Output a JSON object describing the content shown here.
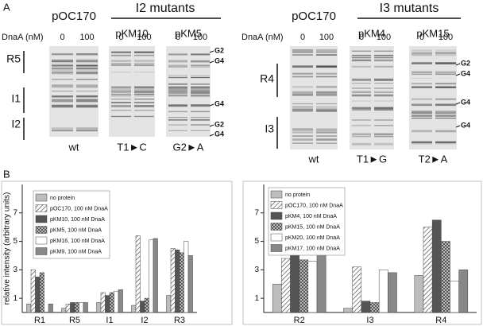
{
  "panel_a": {
    "label": "A",
    "groups": [
      {
        "title": "I2 mutants",
        "dnaa": "DnaA (nM)",
        "gels": [
          {
            "name": "pOC170",
            "lanes": [
              "0",
              "100"
            ],
            "mutation": "wt"
          },
          {
            "name": "pKM10",
            "lanes": [
              "0",
              "100"
            ],
            "mutation": "T1►C"
          },
          {
            "name": "pKM5",
            "lanes": [
              "0",
              "100"
            ],
            "mutation": "G2►A"
          }
        ],
        "regions": [
          "R5",
          "I1",
          "I2"
        ],
        "markers": [
          "G2",
          "G4",
          "G4",
          "G2",
          "G4"
        ]
      },
      {
        "title": "I3 mutants",
        "dnaa": "DnaA (nM)",
        "gels": [
          {
            "name": "pOC170",
            "lanes": [
              "0",
              "100"
            ],
            "mutation": "wt"
          },
          {
            "name": "pKM4",
            "lanes": [
              "0",
              "100"
            ],
            "mutation": "T1►G"
          },
          {
            "name": "pKM15",
            "lanes": [
              "0",
              "100"
            ],
            "mutation": "T2►A"
          }
        ],
        "regions": [
          "R4",
          "I3"
        ],
        "markers": [
          "G2",
          "G4",
          "G4",
          "G4"
        ]
      }
    ]
  },
  "panel_b_label": "B",
  "chart_data": [
    {
      "type": "bar",
      "ylabel": "relative intensity (arbitrary units)",
      "categories": [
        "R1",
        "R5",
        "I1",
        "I2",
        "R3"
      ],
      "ylim": [
        0,
        9
      ],
      "yticks": [
        1,
        3,
        5,
        7
      ],
      "legend": "upper left",
      "series": [
        {
          "name": "no protein",
          "color": "#bdbdbd",
          "values": [
            0.6,
            0.3,
            0.7,
            0.5,
            1.2
          ]
        },
        {
          "name": "pOC170, 100 nM DnaA",
          "color": "#ffffff",
          "pattern": "hatch",
          "values": [
            3.0,
            0.6,
            1.4,
            5.4,
            4.5
          ]
        },
        {
          "name": "pKM10, 100 nM DnaA",
          "color": "#555555",
          "values": [
            2.5,
            0.7,
            1.2,
            0.8,
            4.4
          ]
        },
        {
          "name": "pKM5, 100 nM DnaA",
          "color": "#9a9a9a",
          "pattern": "checker",
          "values": [
            2.8,
            0.7,
            1.4,
            1.0,
            4.2
          ]
        },
        {
          "name": "pKM16, 100 nM DnaA",
          "color": "#ffffff",
          "values": [
            null,
            0.7,
            1.5,
            5.1,
            5.0
          ]
        },
        {
          "name": "pKM9, 100 nM DnaA",
          "color": "#888888",
          "values": [
            0.6,
            0.7,
            1.6,
            5.2,
            4.0
          ]
        }
      ]
    },
    {
      "type": "bar",
      "categories": [
        "R2",
        "I3",
        "R4"
      ],
      "ylim": [
        0,
        9
      ],
      "yticks": [
        1,
        3,
        5,
        7
      ],
      "legend": "upper left",
      "series": [
        {
          "name": "no protein",
          "color": "#bdbdbd",
          "values": [
            2.0,
            0.3,
            2.6
          ]
        },
        {
          "name": "pOC170, 100 nM DnaA",
          "color": "#ffffff",
          "pattern": "hatch",
          "values": [
            3.8,
            3.2,
            6.0
          ]
        },
        {
          "name": "pKM4, 100 nM DnaA",
          "color": "#555555",
          "values": [
            4.3,
            0.8,
            6.5
          ]
        },
        {
          "name": "pKM15, 100 nM DnaA",
          "color": "#9a9a9a",
          "pattern": "checker",
          "values": [
            3.7,
            0.7,
            5.0
          ]
        },
        {
          "name": "pKM20, 100 nM DnaA",
          "color": "#ffffff",
          "values": [
            3.6,
            3.0,
            2.2
          ]
        },
        {
          "name": "pKM17, 100 nM DnaA",
          "color": "#888888",
          "values": [
            4.2,
            2.8,
            3.0
          ]
        }
      ]
    }
  ]
}
